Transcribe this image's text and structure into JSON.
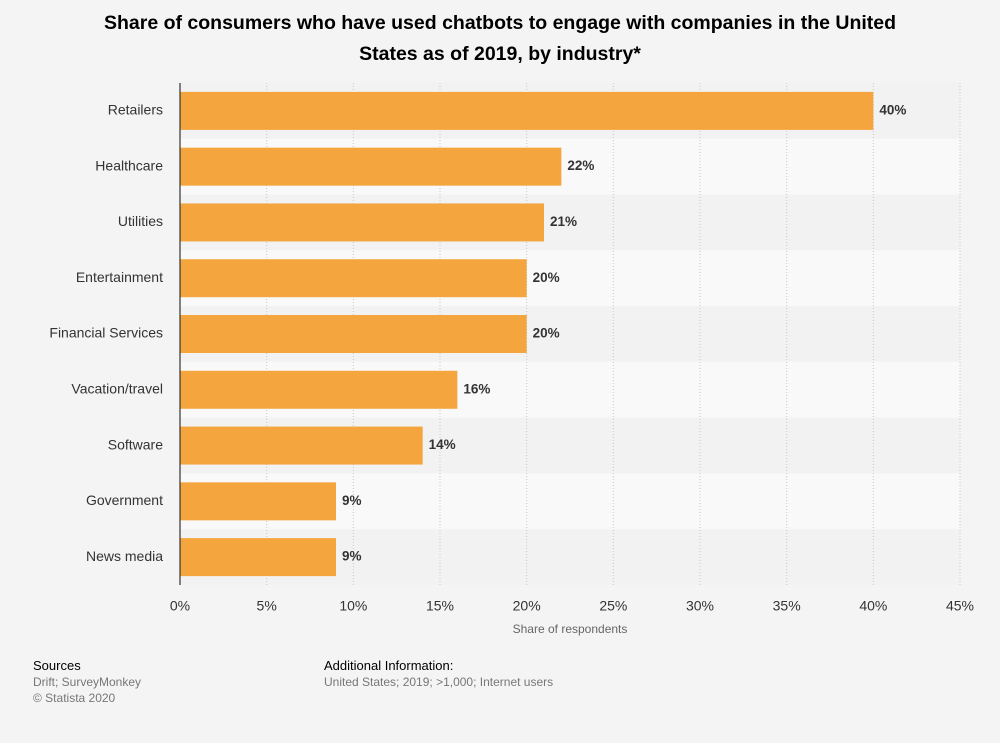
{
  "chart_data": {
    "type": "bar",
    "orientation": "horizontal",
    "title": "Share of consumers who have used chatbots to engage with companies in the United States as of 2019, by industry*",
    "categories": [
      "Retailers",
      "Healthcare",
      "Utilities",
      "Entertainment",
      "Financial Services",
      "Vacation/travel",
      "Software",
      "Government",
      "News media"
    ],
    "values": [
      40,
      22,
      21,
      20,
      20,
      16,
      14,
      9,
      9
    ],
    "value_labels": [
      "40%",
      "22%",
      "21%",
      "20%",
      "20%",
      "16%",
      "14%",
      "9%",
      "9%"
    ],
    "color": "#f4a53e",
    "xlabel": "Share of respondents",
    "xlim": [
      0,
      45
    ],
    "xticks": [
      {
        "value": 0,
        "label": "0%"
      },
      {
        "value": 5,
        "label": "5%"
      },
      {
        "value": 10,
        "label": "10%"
      },
      {
        "value": 15,
        "label": "15%"
      },
      {
        "value": 20,
        "label": "20%"
      },
      {
        "value": 25,
        "label": "25%"
      },
      {
        "value": 30,
        "label": "30%"
      },
      {
        "value": 35,
        "label": "35%"
      },
      {
        "value": 40,
        "label": "40%"
      },
      {
        "value": 45,
        "label": "45%"
      }
    ],
    "grid": true
  },
  "footer": {
    "sources_title": "Sources",
    "sources": "Drift; SurveyMonkey",
    "copyright": "© Statista 2020",
    "info_title": "Additional Information:",
    "info": "United States; 2019; >1,000; Internet users"
  }
}
